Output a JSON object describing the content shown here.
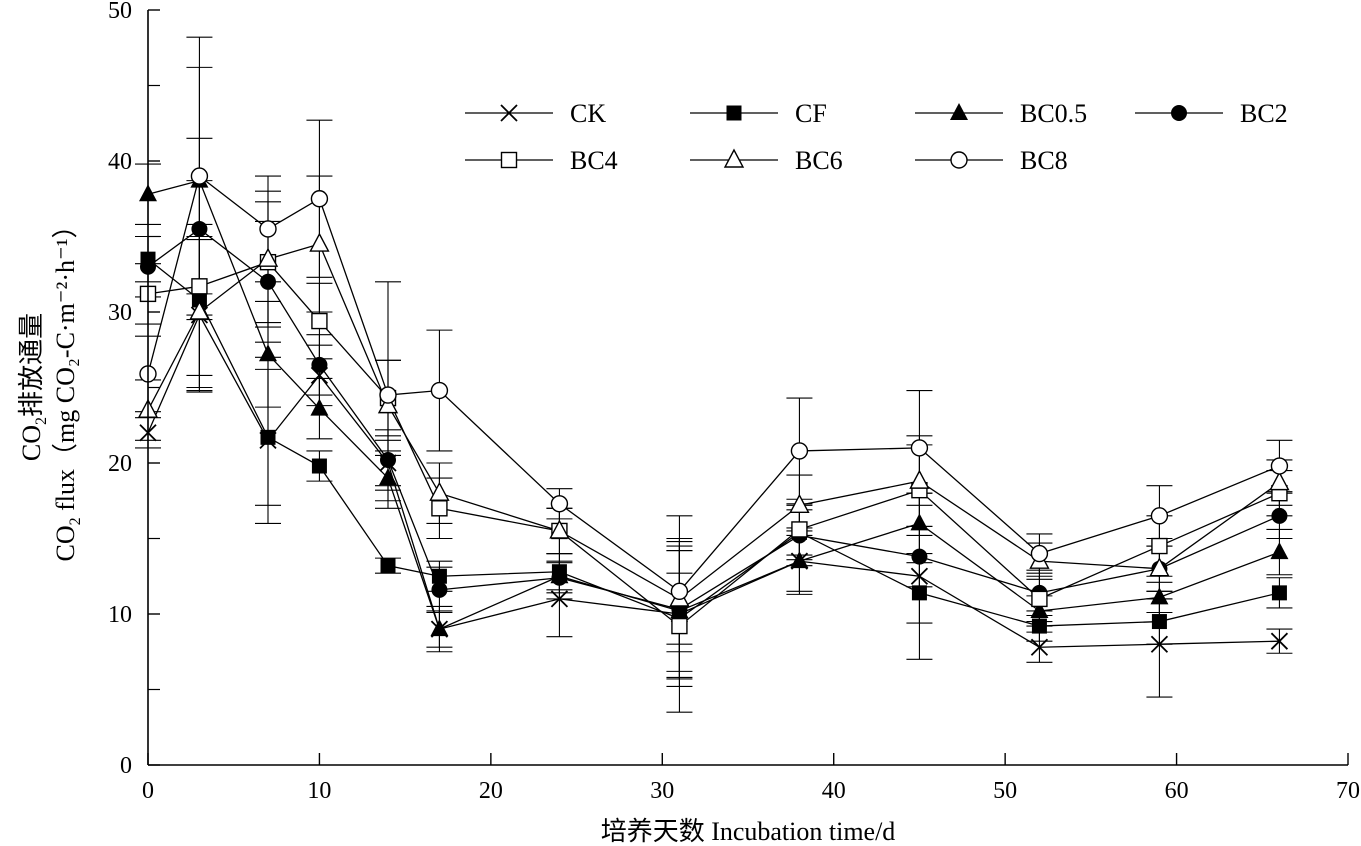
{
  "chart_data": {
    "type": "line",
    "xlabel": "培养天数 Incubation time/d",
    "ylabel_line1": "CO₂排放通量",
    "ylabel_line1_main": "CO",
    "ylabel_line1_sub": "2",
    "ylabel_line1_rest": "排放通量",
    "ylabel_line2_pre": "CO",
    "ylabel_line2_sub": "2",
    "ylabel_line2_rest": " flux（mg CO₂-C·m⁻²·h⁻¹）",
    "xlim": [
      0,
      70
    ],
    "ylim": [
      0,
      50
    ],
    "xticks": [
      0,
      10,
      20,
      30,
      40,
      50,
      60,
      70
    ],
    "yticks": [
      0,
      10,
      20,
      30,
      40,
      50
    ],
    "grid": false,
    "legend_position": "top-right",
    "x": [
      0,
      3,
      7,
      10,
      14,
      17,
      24,
      31,
      38,
      45,
      52,
      59,
      66
    ],
    "series": [
      {
        "name": "CK",
        "marker": "x",
        "values": [
          22.0,
          29.8,
          21.5,
          25.8,
          20.0,
          9.0,
          11.0,
          10.0,
          13.5,
          12.5,
          7.8,
          8.0,
          8.2
        ],
        "errors": [
          1.0,
          5.0,
          5.5,
          2.0,
          1.5,
          1.2,
          2.5,
          6.5,
          2.2,
          5.5,
          1.0,
          3.5,
          0.8
        ]
      },
      {
        "name": "CF",
        "marker": "filled-square",
        "values": [
          33.5,
          30.8,
          21.7,
          19.8,
          13.2,
          12.5,
          12.8,
          9.7,
          15.4,
          11.4,
          9.2,
          9.5,
          11.4
        ],
        "errors": [
          1.5,
          5.0,
          4.5,
          1.0,
          0.5,
          1.0,
          1.2,
          4.5,
          1.5,
          2.0,
          1.0,
          1.5,
          1.0
        ]
      },
      {
        "name": "BC0.5",
        "marker": "filled-triangle",
        "values": [
          37.8,
          38.7,
          27.2,
          23.6,
          19.0,
          9.0,
          12.5,
          10.2,
          13.5,
          16.0,
          10.2,
          11.1,
          14.1
        ],
        "errors": [
          2.0,
          7.5,
          3.5,
          2.0,
          1.5,
          1.5,
          1.5,
          4.0,
          2.0,
          2.0,
          1.0,
          1.0,
          1.5
        ]
      },
      {
        "name": "BC2",
        "marker": "filled-circle",
        "values": [
          33.0,
          35.5,
          32.0,
          26.5,
          20.2,
          11.6,
          12.4,
          10.3,
          15.2,
          13.8,
          11.4,
          13.0,
          16.5
        ],
        "errors": [
          2.0,
          6.0,
          4.0,
          2.0,
          2.0,
          1.5,
          1.0,
          4.5,
          2.0,
          2.0,
          1.5,
          1.5,
          1.5
        ]
      },
      {
        "name": "BC4",
        "marker": "open-square",
        "values": [
          31.2,
          31.7,
          33.3,
          29.4,
          24.3,
          17.0,
          15.5,
          9.2,
          15.6,
          18.2,
          11.0,
          14.5,
          18.0
        ],
        "errors": [
          2.0,
          7.0,
          4.0,
          2.5,
          2.5,
          2.0,
          1.5,
          3.5,
          2.0,
          3.0,
          1.5,
          2.0,
          1.5
        ]
      },
      {
        "name": "BC6",
        "marker": "open-triangle",
        "values": [
          23.5,
          30.0,
          33.5,
          34.5,
          23.8,
          18.0,
          15.5,
          11.0,
          17.2,
          18.8,
          13.5,
          13.0,
          18.7
        ],
        "errors": [
          2.0,
          5.0,
          4.5,
          4.5,
          3.0,
          2.0,
          1.5,
          3.5,
          2.0,
          3.0,
          1.2,
          2.0,
          1.5
        ]
      },
      {
        "name": "BC8",
        "marker": "open-circle",
        "values": [
          25.9,
          39.0,
          35.5,
          37.5,
          24.5,
          24.8,
          17.3,
          11.5,
          20.8,
          21.0,
          14.0,
          16.5,
          19.8
        ],
        "errors": [
          2.5,
          9.2,
          3.5,
          5.2,
          7.5,
          4.0,
          1.0,
          3.5,
          3.5,
          3.8,
          1.3,
          2.0,
          1.7
        ]
      }
    ]
  }
}
